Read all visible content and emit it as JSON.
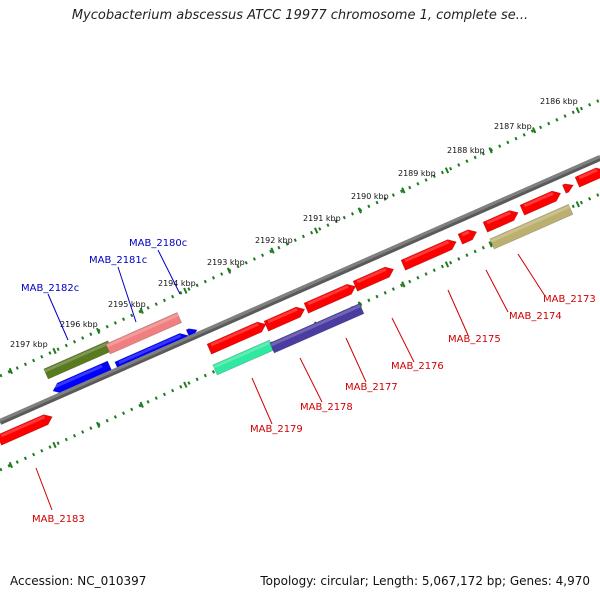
{
  "title": "Mycobacterium abscessus ATCC 19977 chromosome 1, complete se...",
  "accession": "Accession: NC_010397",
  "stats": "Topology: circular; Length: 5,067,172 bp; Genes: 4,970",
  "colors": {
    "chromosome": "#808080",
    "ticks": "#207a20",
    "forward_label": "#0000c0",
    "reverse_label": "#d00000"
  },
  "kbp_labels": [
    {
      "id": "2186",
      "text": "2186 kbp"
    },
    {
      "id": "2187",
      "text": "2187 kbp"
    },
    {
      "id": "2188",
      "text": "2188 kbp"
    },
    {
      "id": "2189",
      "text": "2189 kbp"
    },
    {
      "id": "2190",
      "text": "2190 kbp"
    },
    {
      "id": "2191",
      "text": "2191 kbp"
    },
    {
      "id": "2192",
      "text": "2192 kbp"
    },
    {
      "id": "2193",
      "text": "2193 kbp"
    },
    {
      "id": "2194",
      "text": "2194 kbp"
    },
    {
      "id": "2195",
      "text": "2195 kbp"
    },
    {
      "id": "2196",
      "text": "2196 kbp"
    },
    {
      "id": "2197",
      "text": "2197 kbp"
    }
  ],
  "gene_labels": [
    {
      "id": "2180c",
      "text": "MAB_2180c",
      "color": "#0000c0"
    },
    {
      "id": "2181c",
      "text": "MAB_2181c",
      "color": "#0000c0"
    },
    {
      "id": "2182c",
      "text": "MAB_2182c",
      "color": "#0000c0"
    },
    {
      "id": "2173",
      "text": "MAB_2173",
      "color": "#d00000"
    },
    {
      "id": "2174",
      "text": "MAB_2174",
      "color": "#d00000"
    },
    {
      "id": "2175",
      "text": "MAB_2175",
      "color": "#d00000"
    },
    {
      "id": "2176",
      "text": "MAB_2176",
      "color": "#d00000"
    },
    {
      "id": "2177",
      "text": "MAB_2177",
      "color": "#d00000"
    },
    {
      "id": "2178",
      "text": "MAB_2178",
      "color": "#d00000"
    },
    {
      "id": "2179",
      "text": "MAB_2179",
      "color": "#d00000"
    },
    {
      "id": "2183",
      "text": "MAB_2183",
      "color": "#d00000"
    }
  ]
}
